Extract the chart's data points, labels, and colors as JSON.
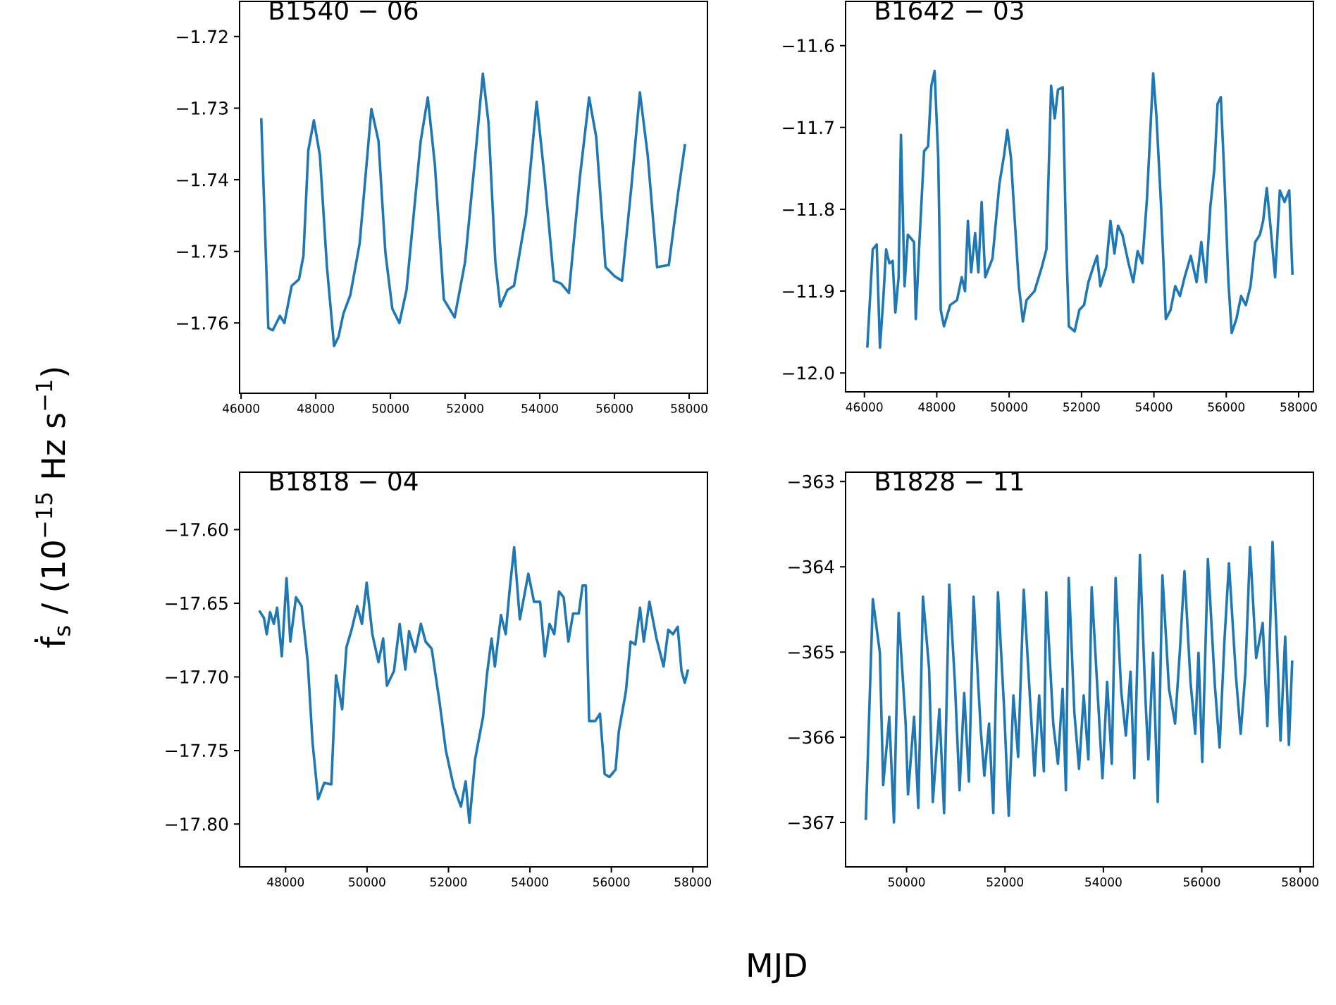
{
  "chart_data": [
    {
      "type": "line",
      "title": "B1540 − 06",
      "ylabel": "ḟ$_{s}$ / (10$^{−15}$ Hz s$^{−1}$)",
      "xlim": [
        45960,
        58490
      ],
      "ylim": [
        -1.7698,
        -1.7151
      ],
      "xticks": [
        46000,
        48000,
        50000,
        52000,
        54000,
        56000,
        58000
      ],
      "yticks": [
        {
          "value": -1.76,
          "label": "−1.76"
        },
        {
          "value": -1.75,
          "label": "−1.75"
        },
        {
          "value": -1.74,
          "label": "−1.74"
        },
        {
          "value": -1.73,
          "label": "−1.73"
        },
        {
          "value": -1.72,
          "label": "−1.72"
        }
      ],
      "series": [
        {
          "color": "#1f77b4",
          "x": [
            46540,
            46730,
            46850,
            47040,
            47160,
            47355,
            47550,
            47670,
            47800,
            47950,
            48110,
            48300,
            48490,
            48610,
            48740,
            48925,
            49175,
            49490,
            49680,
            49865,
            50050,
            50240,
            50430,
            50810,
            51000,
            51190,
            51430,
            51720,
            51998,
            52310,
            52475,
            52625,
            52810,
            52940,
            53130,
            53310,
            53630,
            53915,
            54130,
            54380,
            54570,
            54780,
            55070,
            55320,
            55510,
            55760,
            56010,
            56200,
            56450,
            56680,
            56890,
            57140,
            57455,
            57705,
            57890
          ],
          "values": [
            -1.7314,
            -1.7607,
            -1.761,
            -1.759,
            -1.76,
            -1.7548,
            -1.7539,
            -1.7506,
            -1.7359,
            -1.7317,
            -1.7366,
            -1.7522,
            -1.7632,
            -1.7619,
            -1.7587,
            -1.7561,
            -1.7489,
            -1.7301,
            -1.7346,
            -1.7502,
            -1.758,
            -1.76,
            -1.7554,
            -1.7346,
            -1.7285,
            -1.7379,
            -1.7567,
            -1.7592,
            -1.7515,
            -1.7346,
            -1.7252,
            -1.732,
            -1.7515,
            -1.7577,
            -1.7554,
            -1.7548,
            -1.745,
            -1.7291,
            -1.7398,
            -1.7541,
            -1.7545,
            -1.7558,
            -1.7398,
            -1.7285,
            -1.734,
            -1.7522,
            -1.7535,
            -1.7541,
            -1.7411,
            -1.7278,
            -1.7366,
            -1.7522,
            -1.7519,
            -1.7418,
            -1.735
          ]
        }
      ]
    },
    {
      "type": "line",
      "title": "B1642 − 03",
      "xlim": [
        45480,
        58410
      ],
      "ylim": [
        -12.023,
        -11.546
      ],
      "xticks": [
        46000,
        48000,
        50000,
        52000,
        54000,
        56000,
        58000
      ],
      "yticks": [
        {
          "value": -12.0,
          "label": "−12.0"
        },
        {
          "value": -11.9,
          "label": "−11.9"
        },
        {
          "value": -11.8,
          "label": "−11.8"
        },
        {
          "value": -11.7,
          "label": "−11.7"
        },
        {
          "value": -11.6,
          "label": "−11.6"
        }
      ],
      "series": [
        {
          "color": "#1f77b4",
          "x": [
            46080,
            46230,
            46340,
            46430,
            46520,
            46600,
            46690,
            46780,
            46855,
            46945,
            47010,
            47110,
            47200,
            47370,
            47420,
            47520,
            47650,
            47760,
            47850,
            47940,
            48040,
            48110,
            48200,
            48370,
            48560,
            48690,
            48780,
            48860,
            48950,
            49060,
            49150,
            49240,
            49340,
            49540,
            49730,
            49860,
            49950,
            50050,
            50140,
            50270,
            50380,
            50480,
            50700,
            50900,
            51030,
            51160,
            51260,
            51350,
            51480,
            51570,
            51650,
            51810,
            51940,
            52070,
            52190,
            52320,
            52430,
            52520,
            52680,
            52800,
            52910,
            53010,
            53130,
            53300,
            53430,
            53550,
            53680,
            53810,
            53980,
            54070,
            54200,
            54330,
            54460,
            54590,
            54720,
            54850,
            55020,
            55180,
            55310,
            55440,
            55560,
            55670,
            55760,
            55850,
            55950,
            56060,
            56150,
            56280,
            56410,
            56540,
            56670,
            56800,
            56930,
            57020,
            57120,
            57220,
            57350,
            57480,
            57610,
            57740,
            57830
          ],
          "values": [
            -11.969,
            -11.849,
            -11.843,
            -11.969,
            -11.911,
            -11.849,
            -11.866,
            -11.863,
            -11.926,
            -11.883,
            -11.709,
            -11.894,
            -11.831,
            -11.84,
            -11.934,
            -11.84,
            -11.729,
            -11.723,
            -11.649,
            -11.631,
            -11.737,
            -11.923,
            -11.943,
            -11.917,
            -11.911,
            -11.883,
            -11.9,
            -11.814,
            -11.877,
            -11.829,
            -11.877,
            -11.791,
            -11.883,
            -11.86,
            -11.769,
            -11.734,
            -11.703,
            -11.737,
            -11.803,
            -11.894,
            -11.937,
            -11.911,
            -11.9,
            -11.871,
            -11.849,
            -11.649,
            -11.689,
            -11.654,
            -11.651,
            -11.831,
            -11.943,
            -11.949,
            -11.923,
            -11.917,
            -11.889,
            -11.871,
            -11.857,
            -11.894,
            -11.871,
            -11.814,
            -11.854,
            -11.82,
            -11.831,
            -11.866,
            -11.889,
            -11.851,
            -11.866,
            -11.786,
            -11.634,
            -11.686,
            -11.797,
            -11.934,
            -11.923,
            -11.894,
            -11.906,
            -11.883,
            -11.857,
            -11.889,
            -11.84,
            -11.889,
            -11.797,
            -11.751,
            -11.671,
            -11.663,
            -11.763,
            -11.889,
            -11.951,
            -11.934,
            -11.906,
            -11.917,
            -11.894,
            -11.84,
            -11.831,
            -11.814,
            -11.774,
            -11.82,
            -11.883,
            -11.777,
            -11.791,
            -11.777,
            -11.88
          ]
        }
      ]
    },
    {
      "type": "line",
      "title": "B1818 − 04",
      "xlabel": "MJD",
      "xlim": [
        46870,
        58360
      ],
      "ylim": [
        -17.829,
        -17.561
      ],
      "xticks": [
        48000,
        50000,
        52000,
        54000,
        56000,
        58000
      ],
      "yticks": [
        {
          "value": -17.8,
          "label": "−17.80"
        },
        {
          "value": -17.75,
          "label": "−17.75"
        },
        {
          "value": -17.7,
          "label": "−17.70"
        },
        {
          "value": -17.65,
          "label": "−17.65"
        },
        {
          "value": -17.6,
          "label": "−17.60"
        }
      ],
      "series": [
        {
          "color": "#1f77b4",
          "x": [
            47352,
            47468,
            47537,
            47618,
            47711,
            47792,
            47907,
            48023,
            48116,
            48255,
            48394,
            48544,
            48660,
            48799,
            48949,
            49123,
            49238,
            49389,
            49493,
            49620,
            49759,
            49875,
            49991,
            50130,
            50281,
            50396,
            50488,
            50662,
            50801,
            50940,
            51032,
            51183,
            51322,
            51437,
            51588,
            51785,
            51935,
            52132,
            52306,
            52421,
            52514,
            52653,
            52850,
            52942,
            53058,
            53139,
            53289,
            53405,
            53498,
            53613,
            53752,
            53961,
            54100,
            54250,
            54366,
            54481,
            54597,
            54713,
            54829,
            54944,
            55060,
            55199,
            55292,
            55373,
            55454,
            55604,
            55720,
            55836,
            55951,
            56102,
            56183,
            56356,
            56472,
            56588,
            56704,
            56796,
            56935,
            57109,
            57282,
            57398,
            57513,
            57629,
            57722,
            57803,
            57884
          ],
          "values": [
            -17.655,
            -17.66,
            -17.671,
            -17.656,
            -17.664,
            -17.653,
            -17.686,
            -17.633,
            -17.676,
            -17.646,
            -17.652,
            -17.69,
            -17.744,
            -17.783,
            -17.772,
            -17.773,
            -17.699,
            -17.722,
            -17.68,
            -17.668,
            -17.652,
            -17.664,
            -17.636,
            -17.671,
            -17.69,
            -17.674,
            -17.706,
            -17.696,
            -17.664,
            -17.695,
            -17.669,
            -17.683,
            -17.664,
            -17.676,
            -17.681,
            -17.718,
            -17.75,
            -17.775,
            -17.788,
            -17.771,
            -17.799,
            -17.756,
            -17.727,
            -17.699,
            -17.674,
            -17.693,
            -17.658,
            -17.671,
            -17.642,
            -17.612,
            -17.661,
            -17.63,
            -17.649,
            -17.649,
            -17.686,
            -17.664,
            -17.671,
            -17.642,
            -17.646,
            -17.676,
            -17.657,
            -17.657,
            -17.638,
            -17.638,
            -17.73,
            -17.73,
            -17.725,
            -17.766,
            -17.768,
            -17.763,
            -17.737,
            -17.71,
            -17.676,
            -17.678,
            -17.653,
            -17.676,
            -17.649,
            -17.674,
            -17.693,
            -17.668,
            -17.671,
            -17.666,
            -17.696,
            -17.704,
            -17.695
          ]
        }
      ]
    },
    {
      "type": "line",
      "title": "B1828 − 11",
      "xlim": [
        48760,
        58270
      ],
      "ylim": [
        -367.52,
        -362.89
      ],
      "xticks": [
        50000,
        52000,
        54000,
        56000,
        58000
      ],
      "yticks": [
        {
          "value": -367,
          "label": "−367"
        },
        {
          "value": -366,
          "label": "−366"
        },
        {
          "value": -365,
          "label": "−365"
        },
        {
          "value": -364,
          "label": "−364"
        },
        {
          "value": -363,
          "label": "−363"
        }
      ],
      "series": [
        {
          "color": "#1f77b4",
          "x": [
            49171,
            49314,
            49457,
            49524,
            49648,
            49743,
            49838,
            49981,
            50029,
            50152,
            50238,
            50333,
            50457,
            50533,
            50667,
            50762,
            50867,
            50981,
            51076,
            51171,
            51267,
            51362,
            51505,
            51581,
            51676,
            51762,
            51857,
            51981,
            52076,
            52171,
            52267,
            52381,
            52505,
            52600,
            52695,
            52790,
            52838,
            52981,
            53076,
            53171,
            53238,
            53295,
            53410,
            53505,
            53600,
            53695,
            53762,
            53886,
            53981,
            54076,
            54171,
            54248,
            54362,
            54457,
            54552,
            54629,
            54743,
            54857,
            54914,
            55010,
            55105,
            55200,
            55333,
            55457,
            55552,
            55648,
            55771,
            55867,
            55933,
            56010,
            56124,
            56267,
            56362,
            56457,
            56552,
            56695,
            56790,
            56886,
            56981,
            57105,
            57238,
            57333,
            57438,
            57524,
            57600,
            57695,
            57771,
            57838
          ],
          "values": [
            -366.97,
            -364.38,
            -365.01,
            -366.56,
            -365.76,
            -367.0,
            -364.54,
            -365.84,
            -366.67,
            -365.76,
            -366.83,
            -364.35,
            -365.19,
            -366.76,
            -365.67,
            -366.89,
            -364.21,
            -365.35,
            -366.62,
            -365.48,
            -366.52,
            -364.35,
            -365.9,
            -366.45,
            -365.84,
            -366.89,
            -364.3,
            -365.65,
            -366.92,
            -365.51,
            -366.23,
            -364.27,
            -365.51,
            -366.45,
            -365.51,
            -366.4,
            -364.3,
            -365.84,
            -366.31,
            -365.43,
            -366.62,
            -364.13,
            -365.71,
            -366.37,
            -365.51,
            -366.26,
            -364.24,
            -365.51,
            -366.48,
            -365.35,
            -366.31,
            -364.13,
            -365.46,
            -365.98,
            -365.23,
            -366.48,
            -363.86,
            -365.57,
            -366.26,
            -365.01,
            -366.76,
            -364.1,
            -365.43,
            -365.84,
            -365.01,
            -364.05,
            -365.35,
            -365.96,
            -365.01,
            -366.29,
            -363.91,
            -365.4,
            -366.12,
            -364.9,
            -363.96,
            -365.29,
            -365.96,
            -365.24,
            -363.77,
            -365.07,
            -364.66,
            -365.87,
            -363.71,
            -364.85,
            -366.04,
            -364.82,
            -366.09,
            -365.1
          ]
        }
      ]
    }
  ]
}
